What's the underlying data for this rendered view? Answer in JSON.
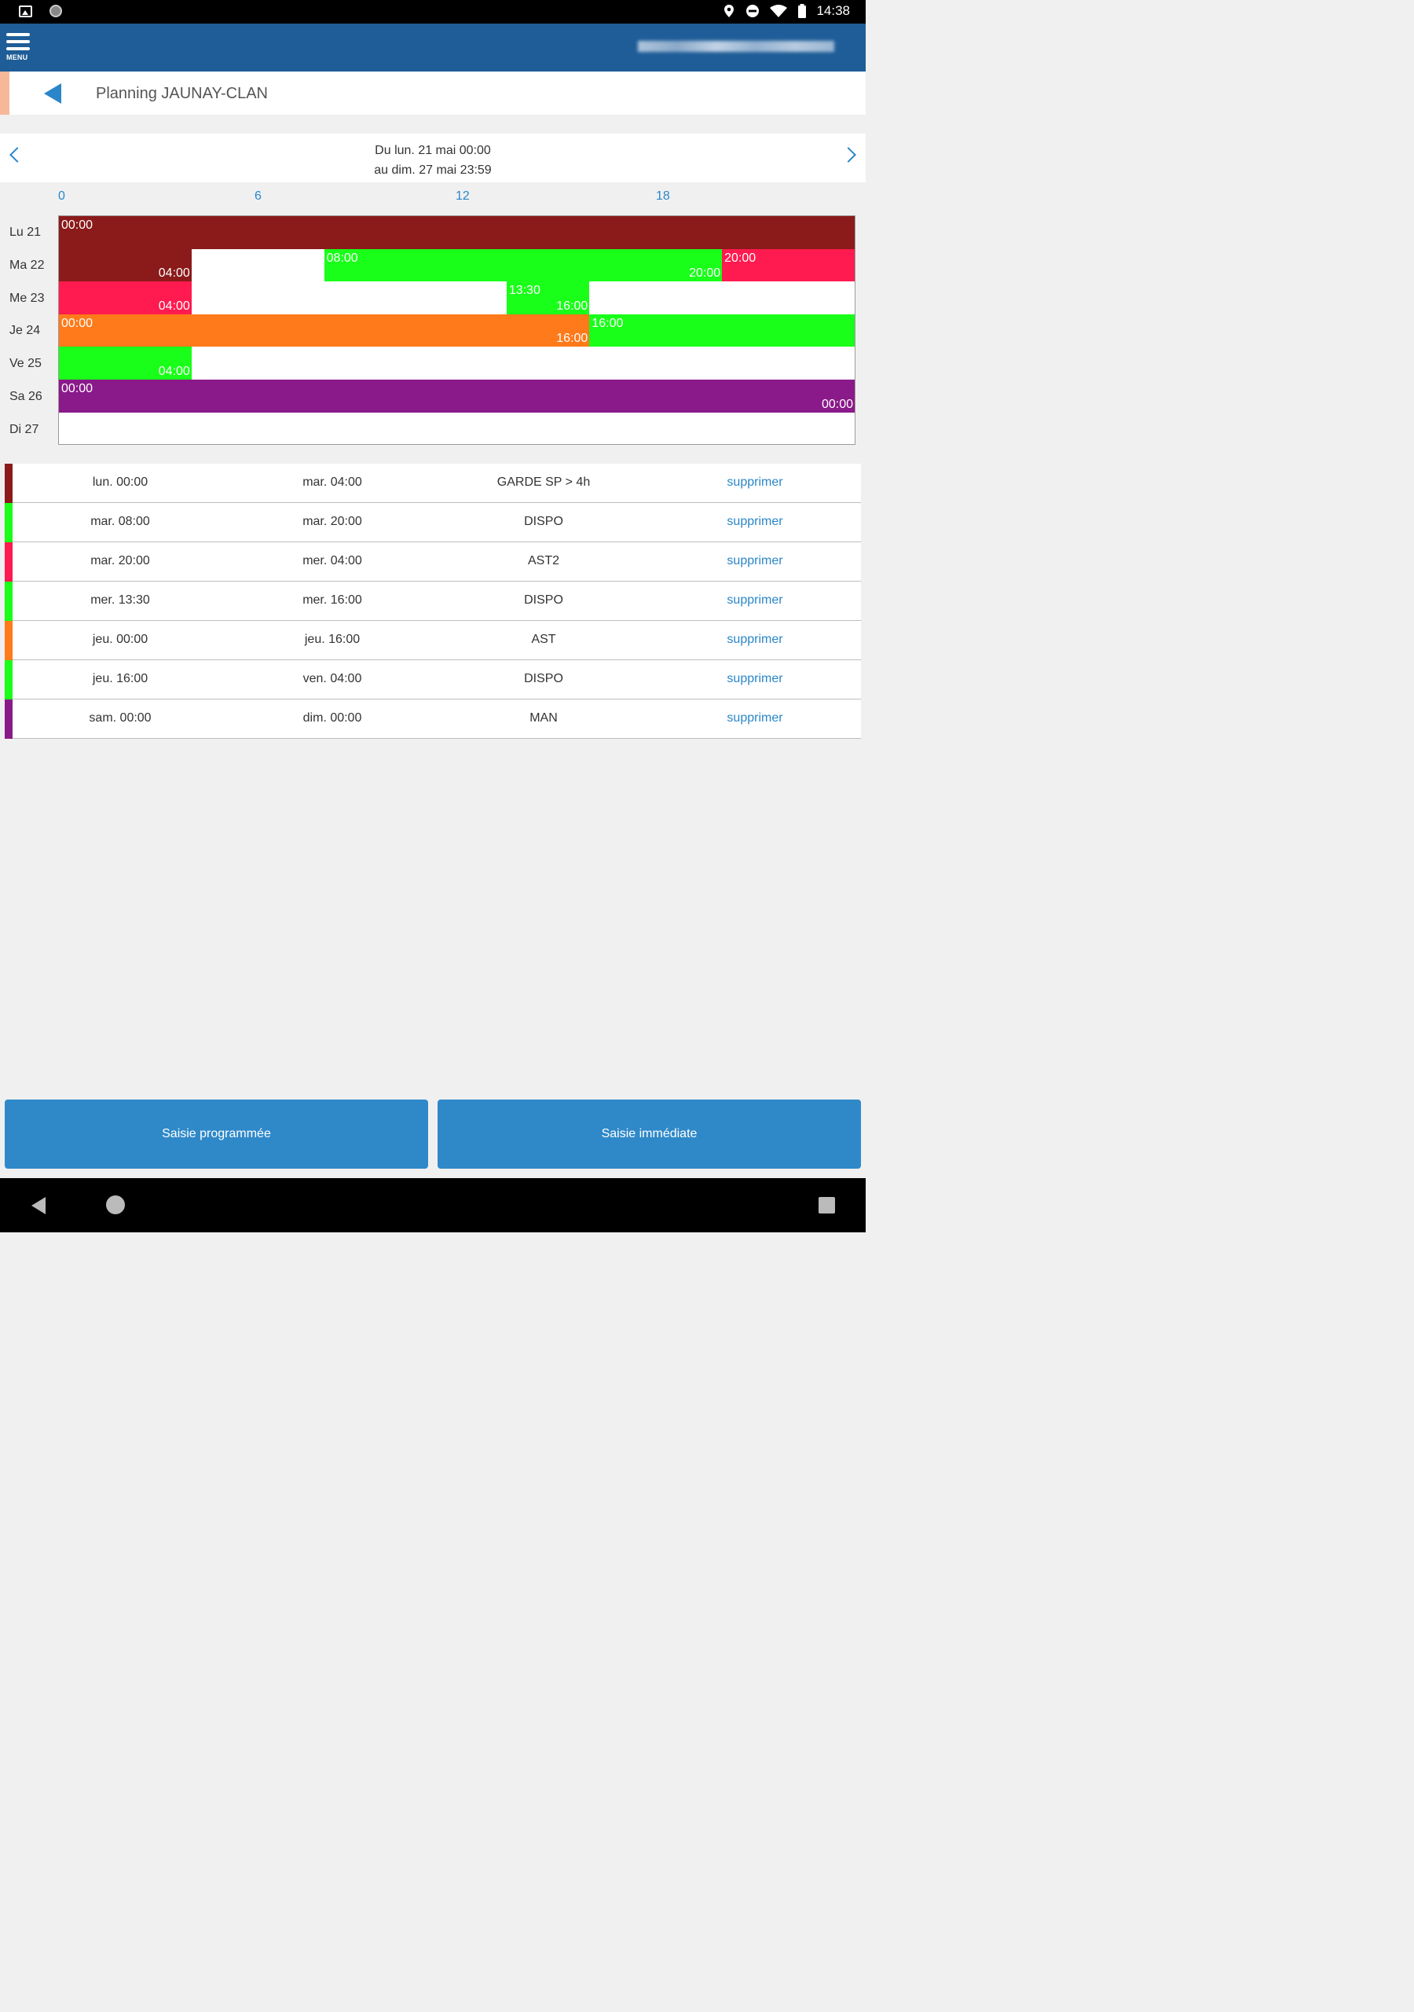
{
  "status_bar": {
    "time": "14:38"
  },
  "header": {
    "menu_label": "MENU"
  },
  "title": {
    "text": "Planning JAUNAY-CLAN"
  },
  "week": {
    "line1": "Du lun. 21 mai 00:00",
    "line2": "au dim. 27 mai 23:59"
  },
  "hours": [
    "0",
    "6",
    "12",
    "18"
  ],
  "colors": {
    "garde": "#8b1a1a",
    "dispo": "#19ff19",
    "ast2": "#ff1a4f",
    "ast": "#ff7a1a",
    "man": "#8a1a8a",
    "accent": "#2a86c8",
    "appbar": "#1e5d97"
  },
  "days": [
    "Lu 21",
    "Ma 22",
    "Me 23",
    "Je 24",
    "Ve 25",
    "Sa 26",
    "Di 27"
  ],
  "segments": [
    {
      "day": 0,
      "start": 0,
      "end": 24,
      "color": "#8b1a1a",
      "start_label": "00:00",
      "end_label": ""
    },
    {
      "day": 1,
      "start": 0,
      "end": 4,
      "color": "#8b1a1a",
      "start_label": "",
      "end_label": "04:00"
    },
    {
      "day": 1,
      "start": 8,
      "end": 20,
      "color": "#19ff19",
      "start_label": "08:00",
      "end_label": "20:00"
    },
    {
      "day": 1,
      "start": 20,
      "end": 24,
      "color": "#ff1a4f",
      "start_label": "20:00",
      "end_label": ""
    },
    {
      "day": 2,
      "start": 0,
      "end": 4,
      "color": "#ff1a4f",
      "start_label": "",
      "end_label": "04:00"
    },
    {
      "day": 2,
      "start": 13.5,
      "end": 16,
      "color": "#19ff19",
      "start_label": "13:30",
      "end_label": "16:00"
    },
    {
      "day": 3,
      "start": 0,
      "end": 16,
      "color": "#ff7a1a",
      "start_label": "00:00",
      "end_label": "16:00"
    },
    {
      "day": 3,
      "start": 16,
      "end": 24,
      "color": "#19ff19",
      "start_label": "16:00",
      "end_label": ""
    },
    {
      "day": 4,
      "start": 0,
      "end": 4,
      "color": "#19ff19",
      "start_label": "",
      "end_label": "04:00"
    },
    {
      "day": 5,
      "start": 0,
      "end": 24,
      "color": "#8a1a8a",
      "start_label": "00:00",
      "end_label": "00:00"
    }
  ],
  "entries": [
    {
      "color": "#8b1a1a",
      "start": "lun. 00:00",
      "end": "mar. 04:00",
      "type": "GARDE SP > 4h",
      "action": "supprimer"
    },
    {
      "color": "#19ff19",
      "start": "mar. 08:00",
      "end": "mar. 20:00",
      "type": "DISPO",
      "action": "supprimer"
    },
    {
      "color": "#ff1a4f",
      "start": "mar. 20:00",
      "end": "mer. 04:00",
      "type": "AST2",
      "action": "supprimer"
    },
    {
      "color": "#19ff19",
      "start": "mer. 13:30",
      "end": "mer. 16:00",
      "type": "DISPO",
      "action": "supprimer"
    },
    {
      "color": "#ff7a1a",
      "start": "jeu. 00:00",
      "end": "jeu. 16:00",
      "type": "AST",
      "action": "supprimer"
    },
    {
      "color": "#19ff19",
      "start": "jeu. 16:00",
      "end": "ven. 04:00",
      "type": "DISPO",
      "action": "supprimer"
    },
    {
      "color": "#8a1a8a",
      "start": "sam. 00:00",
      "end": "dim. 00:00",
      "type": "MAN",
      "action": "supprimer"
    }
  ],
  "buttons": {
    "scheduled": "Saisie programmée",
    "immediate": "Saisie immédiate"
  }
}
